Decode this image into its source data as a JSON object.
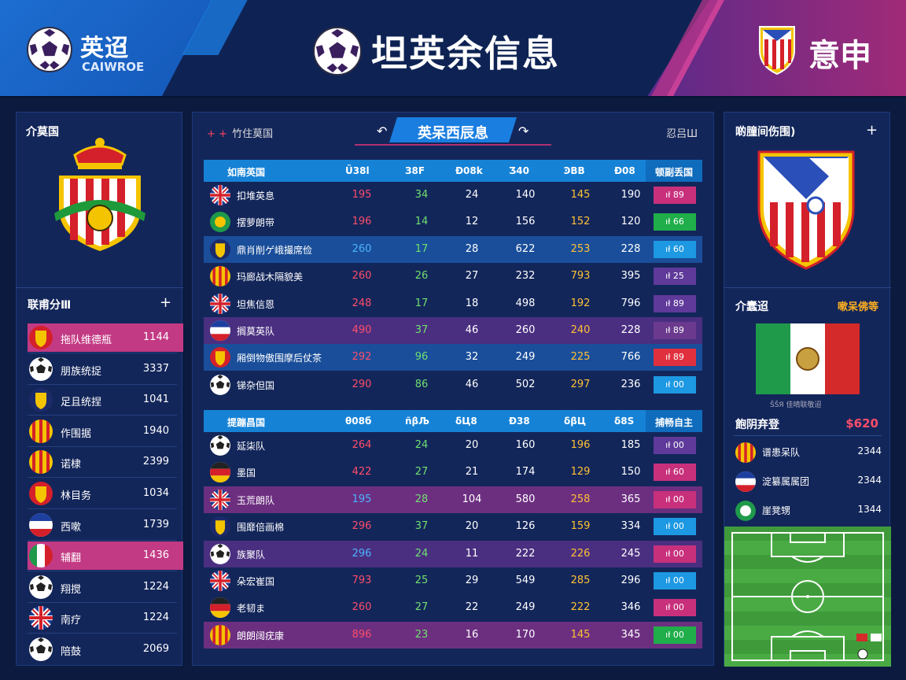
{
  "header": {
    "brand": "英迢",
    "brand_sub": "CAIWROE",
    "title": "坦英余信息",
    "right_text": "意申"
  },
  "left_panel": {
    "title": "介莫国",
    "ranking_title": "联甫分Ⅲ",
    "items": [
      {
        "label": "拖队维德瓶",
        "value": "1144"
      },
      {
        "label": "朋族统捉",
        "value": "3337"
      },
      {
        "label": "足且统捏",
        "value": "1041"
      },
      {
        "label": "作围据",
        "value": "1940"
      },
      {
        "label": "诺棣",
        "value": "2399"
      },
      {
        "label": "林目务",
        "value": "1034"
      },
      {
        "label": "西嗽",
        "value": "1739"
      },
      {
        "label": "辅翻",
        "value": "1436"
      },
      {
        "label": "翔搅",
        "value": "1224"
      },
      {
        "label": "南疗",
        "value": "1224"
      },
      {
        "label": "陪鼓",
        "value": "2069"
      }
    ]
  },
  "center": {
    "top_left_label": "竹住莫国",
    "title": "英呆西辰息",
    "top_right_label": "忍吕Ш",
    "table1": {
      "headers": [
        "如南英国",
        "Ü38l",
        "З8F",
        "Ð08k",
        "Ʒ40",
        "ϿBB",
        "Ð08",
        "顿副丢国"
      ],
      "rows": [
        {
          "team": "扣堆英息",
          "vals": [
            "195",
            "34",
            "24",
            "140",
            "145",
            "190"
          ],
          "badge": "ıł 89",
          "badge_color": "#c8307c"
        },
        {
          "team": "摆萝朗带",
          "vals": [
            "196",
            "14",
            "12",
            "156",
            "152",
            "120"
          ],
          "badge": "ıł 66",
          "badge_color": "#1fae4a"
        },
        {
          "team": "鼎肖削ゲ峨撮席俭",
          "vals": [
            "260",
            "17",
            "28",
            "622",
            "253",
            "228"
          ],
          "badge": "ıł 60",
          "badge_color": "#1d98e2"
        },
        {
          "team": "玛廊战木隔貌美",
          "vals": [
            "260",
            "26",
            "27",
            "232",
            "793",
            "395"
          ],
          "badge": "ıł 25",
          "badge_color": "#5f3a9a"
        },
        {
          "team": "坦焦信恩",
          "vals": [
            "248",
            "17",
            "18",
            "498",
            "192",
            "796"
          ],
          "badge": "ıł 89",
          "badge_color": "#5f3a9a"
        },
        {
          "team": "搁莫英队",
          "vals": [
            "490",
            "37",
            "46",
            "260",
            "240",
            "228"
          ],
          "badge": "ıł 89",
          "badge_color": "#6b3a8e"
        },
        {
          "team": "厢倒物傲围摩后仗茶",
          "vals": [
            "292",
            "96",
            "32",
            "249",
            "225",
            "766"
          ],
          "badge": "ıł 89",
          "badge_color": "#e0303e"
        },
        {
          "team": "锑杂但国",
          "vals": [
            "290",
            "86",
            "46",
            "502",
            "297",
            "236"
          ],
          "badge": "ıł 00",
          "badge_color": "#1d98e2"
        }
      ]
    },
    "table2": {
      "headers": [
        "提蹦昌国",
        "θ08б",
        "ñβЉ",
        "δЦ8",
        "Ð38",
        "δβЦ",
        "δ8Ѕ",
        "捕畅自主"
      ],
      "rows": [
        {
          "team": "延柒队",
          "vals": [
            "264",
            "24",
            "20",
            "160",
            "196",
            "185"
          ],
          "badge": "ıł 00",
          "badge_color": "#5f3a9a"
        },
        {
          "team": "墨国",
          "vals": [
            "422",
            "27",
            "21",
            "174",
            "129",
            "150"
          ],
          "badge": "ıł 60",
          "badge_color": "#c8307c"
        },
        {
          "team": "玉荒朗队",
          "vals": [
            "195",
            "28",
            "104",
            "580",
            "258",
            "365"
          ],
          "badge": "ıł 00",
          "badge_color": "#c8307c"
        },
        {
          "team": "围靡倍画棉",
          "vals": [
            "296",
            "37",
            "20",
            "126",
            "159",
            "334"
          ],
          "badge": "ıł 00",
          "badge_color": "#1d98e2"
        },
        {
          "team": "族聚队",
          "vals": [
            "296",
            "24",
            "11",
            "222",
            "226",
            "245"
          ],
          "badge": "ıł 00",
          "badge_color": "#c8307c"
        },
        {
          "team": "朵宏崔国",
          "vals": [
            "793",
            "25",
            "29",
            "549",
            "285",
            "296"
          ],
          "badge": "ıł 00",
          "badge_color": "#1d98e2"
        },
        {
          "team": "老韧ま",
          "vals": [
            "260",
            "27",
            "22",
            "249",
            "222",
            "346"
          ],
          "badge": "ıł 00",
          "badge_color": "#c8307c"
        },
        {
          "team": "朗朗阔疣康",
          "vals": [
            "896",
            "23",
            "16",
            "170",
            "145",
            "345"
          ],
          "badge": "ıł 00",
          "badge_color": "#1fae4a"
        }
      ]
    }
  },
  "right_panel": {
    "title": "啲朣间伤围)",
    "sub_title": "介蠢迢",
    "sub_right": "嗽呆佛等",
    "flag_caption": "ŠŠЯ 佳晴联敬迢",
    "section_title": "飽阴弃登",
    "section_value": "$620",
    "items": [
      {
        "label": "谱患呆队",
        "value": "2344"
      },
      {
        "label": "淀纂属属团",
        "value": "2344"
      },
      {
        "label": "崖凳甥",
        "value": "1344"
      }
    ]
  },
  "colors": {
    "header_bg": "#0e2354",
    "panel_bg": "#13265a",
    "accent_blue": "#1682d6",
    "accent_magenta": "#c33a84"
  }
}
